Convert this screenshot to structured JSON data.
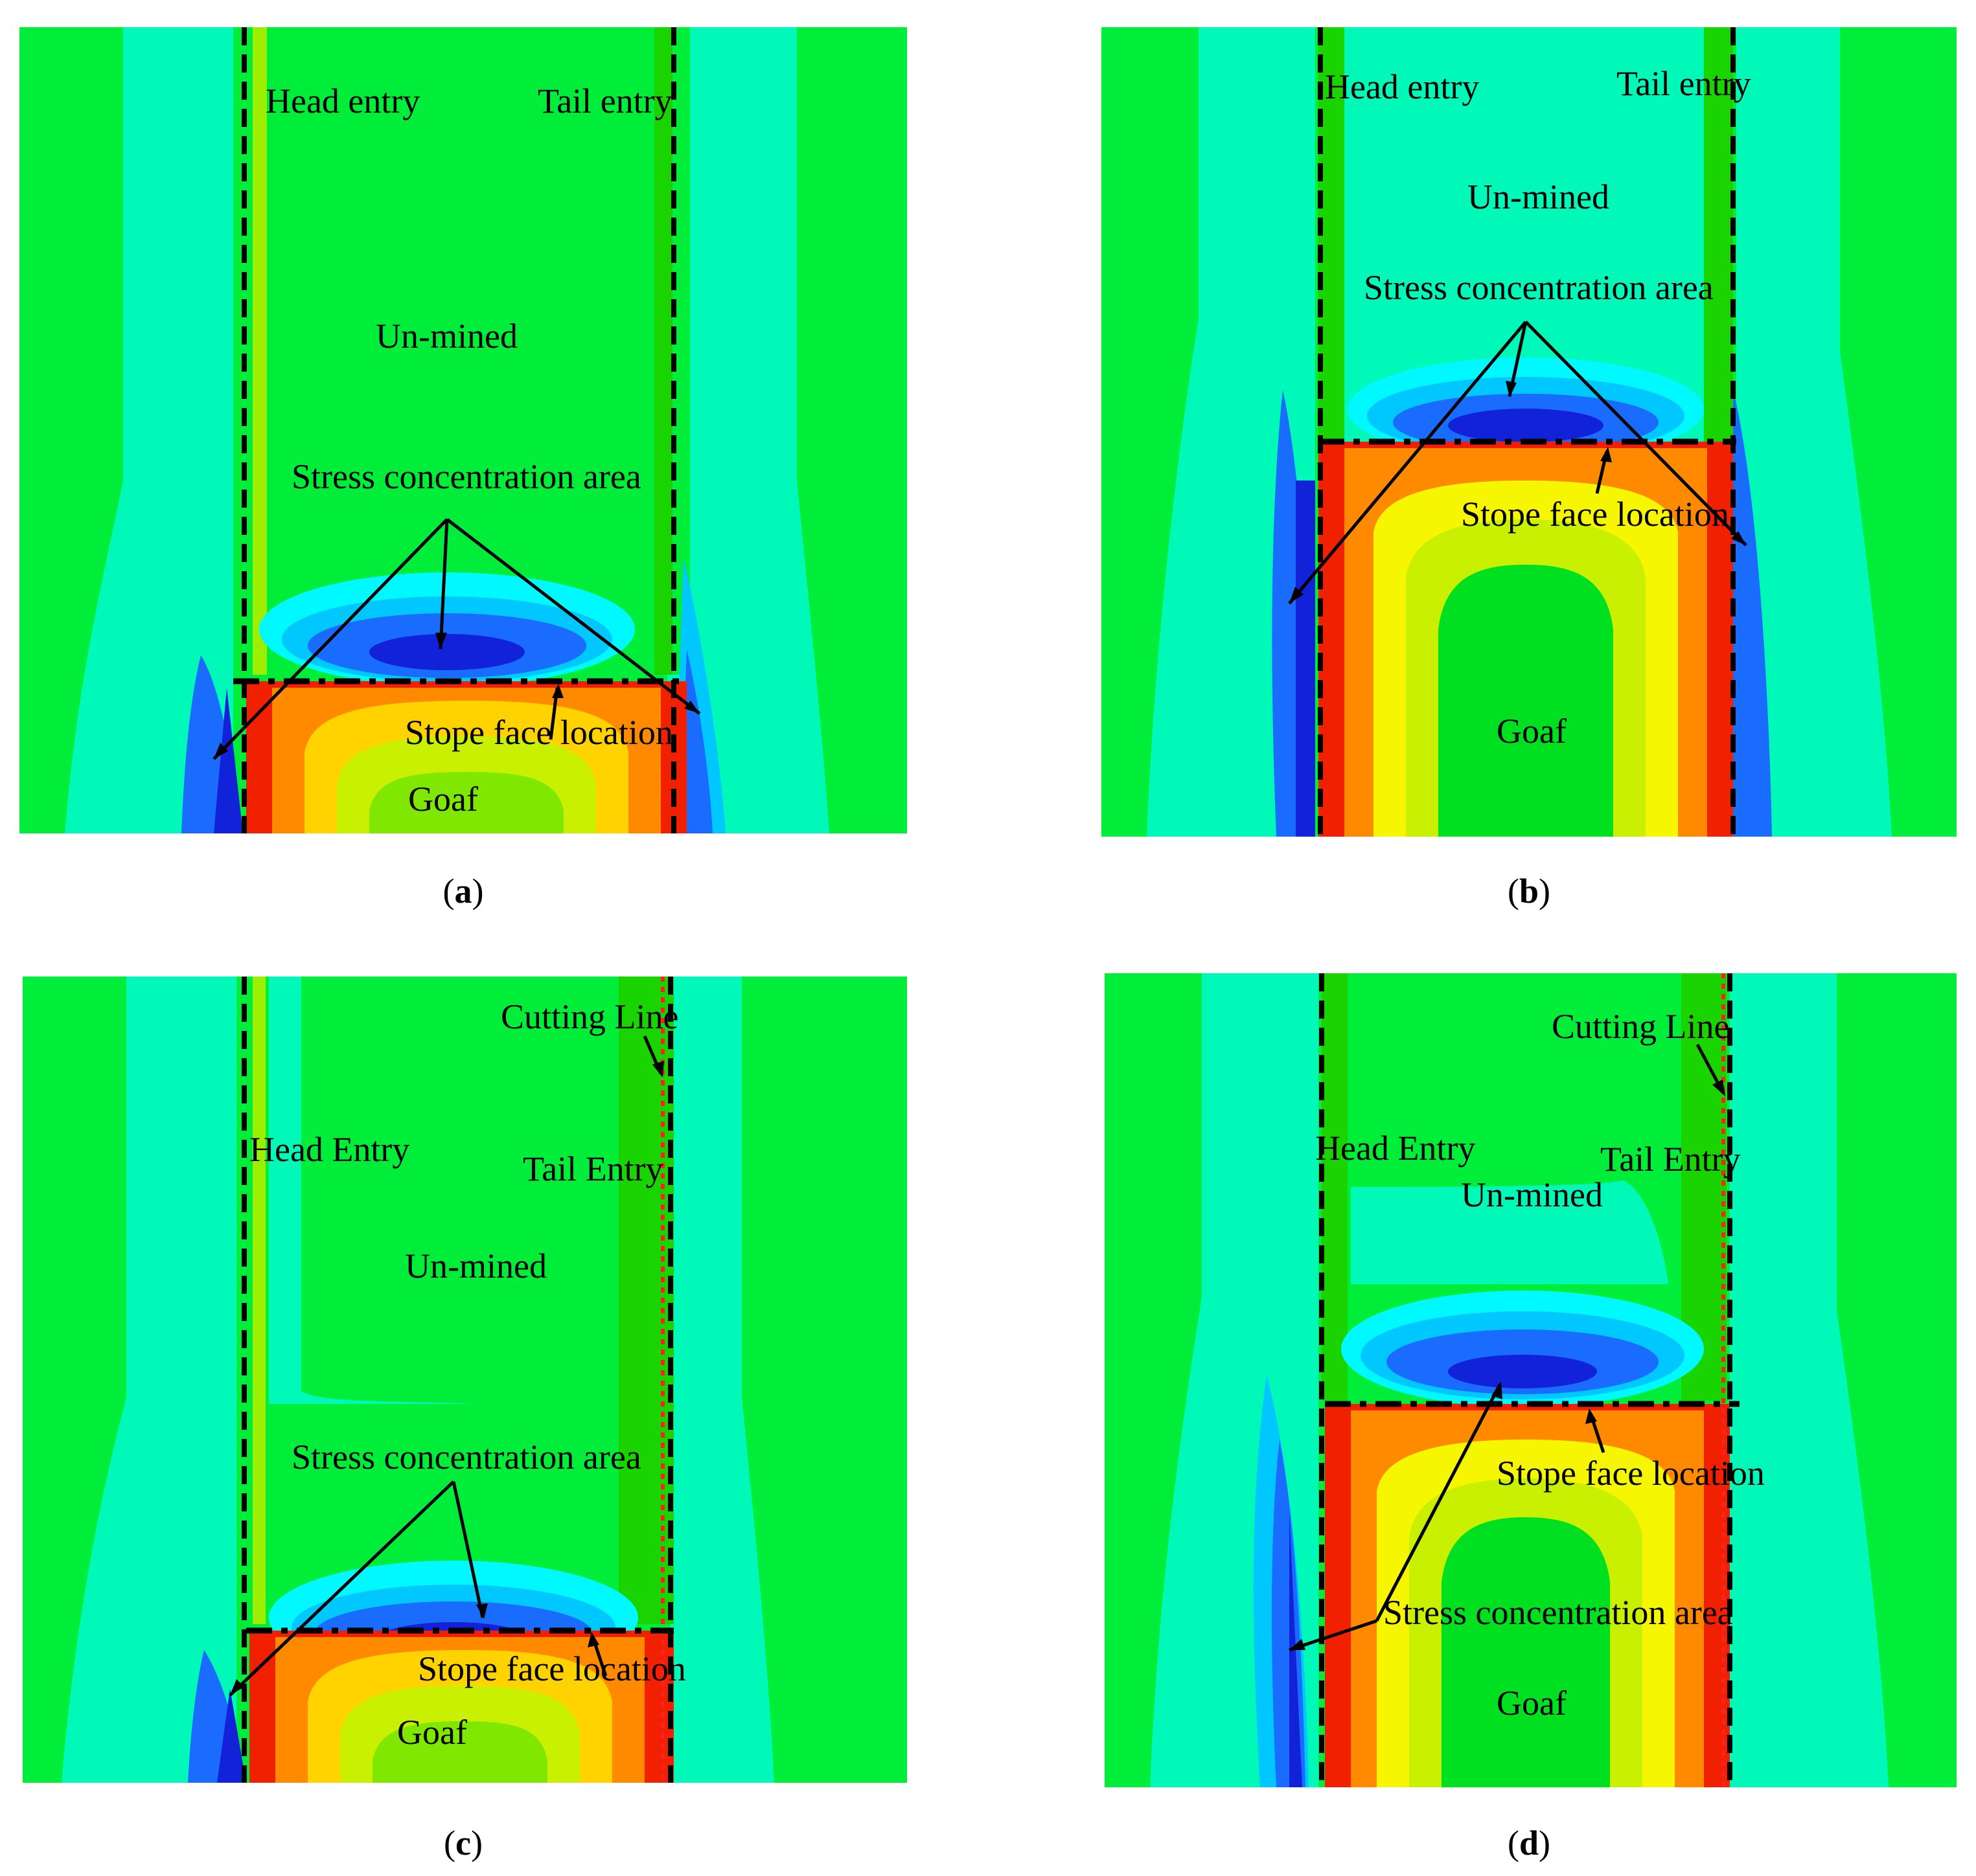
{
  "colors": {
    "background_green": "#00ee3a",
    "cyan_zone": "#00f8b8",
    "dark_green_band": "#1ad400",
    "yellow_green": "#9cef00",
    "yellow": "#f6f600",
    "orange": "#ff8a00",
    "red": "#f02000",
    "blue_light": "#00d8ff",
    "blue_mid": "#1a6cff",
    "blue_dark": "#1222d8",
    "boundary_line": "#000000",
    "cutting_line": "#ff2020"
  },
  "panels": {
    "a": {
      "caption_letter": "a",
      "labels": {
        "head": "Head entry",
        "tail": "Tail entry",
        "unmined": "Un-mined",
        "stress": "Stress concentration area",
        "stope": "Stope face location",
        "goaf": "Goaf"
      }
    },
    "b": {
      "caption_letter": "b",
      "labels": {
        "head": "Head entry",
        "tail": "Tail entry",
        "unmined": "Un-mined",
        "stress": "Stress concentration area",
        "stope": "Stope face location",
        "goaf": "Goaf"
      }
    },
    "c": {
      "caption_letter": "c",
      "labels": {
        "cutting": "Cutting Line",
        "head": "Head Entry",
        "tail": "Tail Entry",
        "unmined": "Un-mined",
        "stress": "Stress concentration area",
        "stope": "Stope face location",
        "goaf": "Goaf"
      }
    },
    "d": {
      "caption_letter": "d",
      "labels": {
        "cutting": "Cutting Line",
        "head": "Head Entry",
        "tail": "Tail Entry",
        "unmined": "Un-mined",
        "stress": "Stress concentration area",
        "stope": "Stope face location",
        "goaf": "Goaf"
      }
    }
  }
}
